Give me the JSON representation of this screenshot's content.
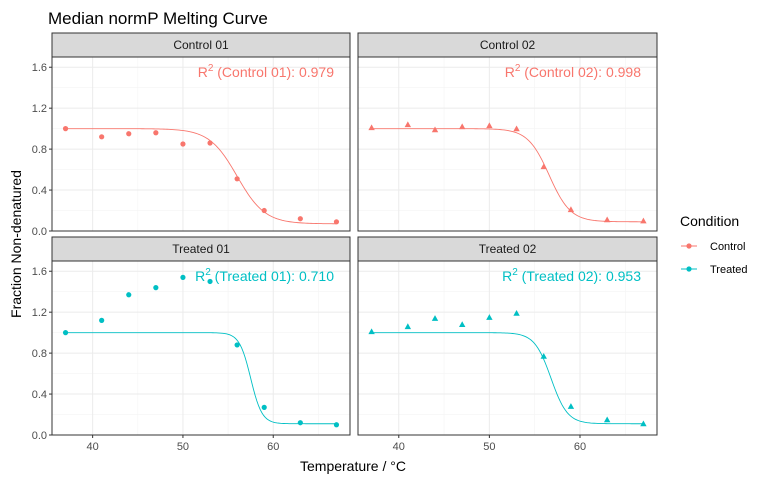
{
  "chart_data": {
    "type": "scatter",
    "title": "Median normP Melting Curve",
    "xlabel": "Temperature / °C",
    "ylabel": "Fraction Non-denatured",
    "xlim": [
      35.5,
      68.5
    ],
    "ylim": [
      0,
      1.7
    ],
    "xticks": [
      40,
      50,
      60
    ],
    "yticks": [
      0.0,
      0.4,
      0.8,
      1.2,
      1.6
    ],
    "grid": true,
    "legend": {
      "title": "Condition",
      "placement": "right",
      "entries": [
        {
          "name": "Control",
          "color": "#F8766D"
        },
        {
          "name": "Treated",
          "color": "#00BFC4"
        }
      ]
    },
    "panels": [
      {
        "strip": "Control 01",
        "condition": "Control",
        "color": "#F8766D",
        "marker": "circle",
        "r2_sup": "2",
        "r2_label": "R",
        "r2_text": " (Control 01):  0.979",
        "x": [
          37,
          41,
          44,
          47,
          50,
          53,
          56,
          59,
          63,
          67
        ],
        "y": [
          1.0,
          0.92,
          0.95,
          0.96,
          0.85,
          0.86,
          0.51,
          0.2,
          0.12,
          0.09
        ],
        "fit": {
          "top": 1.0,
          "bottom": 0.07,
          "tm": 56.0,
          "slope": 0.65
        }
      },
      {
        "strip": "Control 02",
        "condition": "Control",
        "color": "#F8766D",
        "marker": "triangle",
        "r2_sup": "2",
        "r2_label": "R",
        "r2_text": " (Control 02):  0.998",
        "x": [
          37,
          41,
          44,
          47,
          50,
          53,
          56,
          59,
          63,
          67
        ],
        "y": [
          1.01,
          1.04,
          0.99,
          1.02,
          1.03,
          1.0,
          0.63,
          0.21,
          0.11,
          0.1
        ],
        "fit": {
          "top": 1.0,
          "bottom": 0.09,
          "tm": 56.6,
          "slope": 0.85
        }
      },
      {
        "strip": "Treated 01",
        "condition": "Treated",
        "color": "#00BFC4",
        "marker": "circle",
        "r2_sup": "2",
        "r2_label": "R",
        "r2_text": " (Treated 01):  0.710",
        "x": [
          37,
          41,
          44,
          47,
          50,
          53,
          56,
          59,
          63,
          67
        ],
        "y": [
          1.0,
          1.12,
          1.37,
          1.44,
          1.54,
          1.5,
          0.88,
          0.27,
          0.12,
          0.1
        ],
        "fit": {
          "top": 1.0,
          "bottom": 0.11,
          "tm": 57.5,
          "slope": 1.6
        }
      },
      {
        "strip": "Treated 02",
        "condition": "Treated",
        "color": "#00BFC4",
        "marker": "triangle",
        "r2_sup": "2",
        "r2_label": "R",
        "r2_text": " (Treated 02):  0.953",
        "x": [
          37,
          41,
          44,
          47,
          50,
          53,
          56,
          59,
          63,
          67
        ],
        "y": [
          1.01,
          1.06,
          1.14,
          1.08,
          1.15,
          1.19,
          0.77,
          0.28,
          0.15,
          0.11
        ],
        "fit": {
          "top": 1.0,
          "bottom": 0.11,
          "tm": 56.8,
          "slope": 1.1
        }
      }
    ]
  }
}
